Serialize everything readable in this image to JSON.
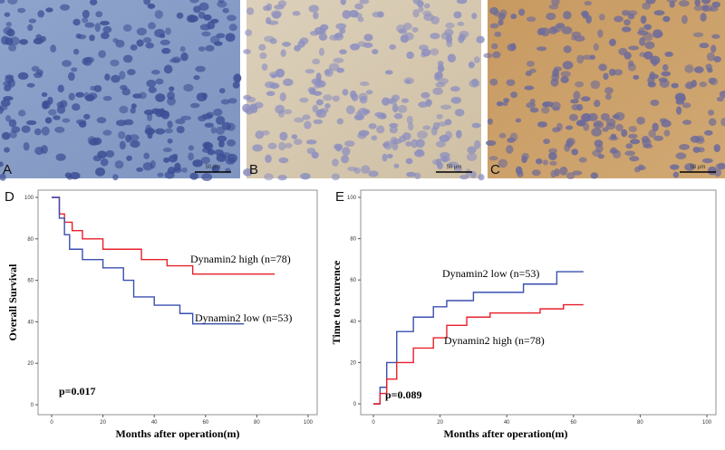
{
  "panels": [
    {
      "label": "A",
      "scale": "50 μm"
    },
    {
      "label": "B",
      "scale": "50 μm"
    },
    {
      "label": "C",
      "scale": "50 μm"
    }
  ],
  "chart_data": [
    {
      "type": "line",
      "step": true,
      "panel": "D",
      "ylabel": "Overall Survival",
      "xlabel": "Months after operation(m)",
      "annotation": "p=0.017",
      "xlim": [
        0,
        100
      ],
      "xticks": [
        0,
        20,
        40,
        60,
        80,
        100
      ],
      "ylim": [
        0,
        100
      ],
      "yticks": [
        0,
        20,
        40,
        60,
        80,
        100
      ],
      "series": [
        {
          "name": "Dynamin2 high (n=78)",
          "color": "#e8202a",
          "x": [
            0,
            3,
            3,
            5,
            5,
            8,
            8,
            12,
            12,
            20,
            20,
            35,
            35,
            45,
            45,
            55,
            55,
            87
          ],
          "values": [
            100,
            100,
            92,
            92,
            88,
            88,
            84,
            84,
            80,
            80,
            75,
            75,
            70,
            70,
            67,
            67,
            63,
            63
          ]
        },
        {
          "name": "Dynamin2 low (n=53)",
          "color": "#3a4fb0",
          "x": [
            0,
            3,
            3,
            5,
            5,
            7,
            7,
            12,
            12,
            20,
            20,
            28,
            28,
            32,
            32,
            40,
            40,
            50,
            50,
            55,
            55,
            75
          ],
          "values": [
            100,
            100,
            90,
            90,
            82,
            82,
            75,
            75,
            70,
            70,
            66,
            66,
            60,
            60,
            52,
            52,
            48,
            48,
            44,
            44,
            39,
            39
          ]
        }
      ]
    },
    {
      "type": "line",
      "step": true,
      "panel": "E",
      "ylabel": "Time to recurence",
      "xlabel": "Months after operation(m)",
      "annotation": "p=0.089",
      "xlim": [
        0,
        100
      ],
      "xticks": [
        0,
        20,
        40,
        60,
        80,
        100
      ],
      "ylim": [
        0,
        100
      ],
      "yticks": [
        0,
        20,
        40,
        60,
        80,
        100
      ],
      "series": [
        {
          "name": "Dynamin2 low (n=53)",
          "color": "#3a4fb0",
          "x": [
            0,
            2,
            2,
            4,
            4,
            7,
            7,
            12,
            12,
            18,
            18,
            22,
            22,
            30,
            30,
            45,
            45,
            55,
            55,
            63
          ],
          "values": [
            0,
            0,
            8,
            8,
            20,
            20,
            35,
            35,
            42,
            42,
            47,
            47,
            50,
            50,
            54,
            54,
            58,
            58,
            64,
            64
          ]
        },
        {
          "name": "Dynamin2 high (n=78)",
          "color": "#e8202a",
          "x": [
            0,
            2,
            2,
            4,
            4,
            7,
            7,
            12,
            12,
            18,
            18,
            22,
            22,
            28,
            28,
            35,
            35,
            50,
            50,
            57,
            57,
            63
          ],
          "values": [
            0,
            0,
            5,
            5,
            12,
            12,
            20,
            20,
            27,
            27,
            32,
            32,
            38,
            38,
            42,
            42,
            44,
            44,
            46,
            46,
            48,
            48
          ]
        }
      ]
    }
  ]
}
